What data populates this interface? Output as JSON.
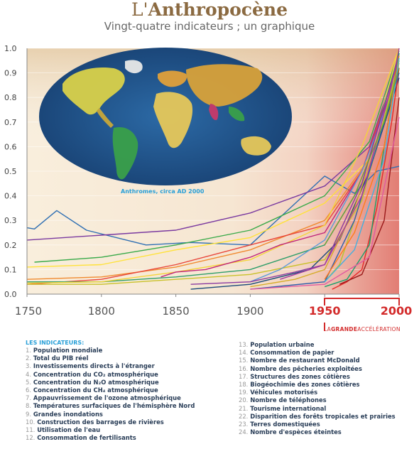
{
  "header": {
    "title_prefix": "L'",
    "title_main": "Anthropocène",
    "subtitle": "Vingt-quatre indicateurs ; un graphique"
  },
  "map": {
    "caption": "Anthromes, circa AD 2000"
  },
  "annotation": {
    "label_part1": "LA",
    "label_part2": "GRANDE",
    "label_part3": "ACCÉLÉRATION",
    "range": [
      1950,
      2000
    ]
  },
  "colors": {
    "background_left": "#f7e9d4",
    "background_right": "#e89088",
    "highlight": "#d32b2b",
    "legend_title": "#2aa0d8"
  },
  "legend": {
    "title": "LES INDICATEURS:",
    "items": [
      {
        "num": "1.",
        "label": "Population mondiale"
      },
      {
        "num": "2.",
        "label": "Total du PIB réel"
      },
      {
        "num": "3.",
        "label": "Investissements directs à l'étranger"
      },
      {
        "num": "4.",
        "label": "Concentration du CO₂ atmosphérique"
      },
      {
        "num": "5.",
        "label": "Concentration du N₂O atmosphérique"
      },
      {
        "num": "6.",
        "label": "Concentration du CH₄ atmosphérique"
      },
      {
        "num": "7.",
        "label": "Appauvrissement de l'ozone atmosphérique"
      },
      {
        "num": "8.",
        "label": "Températures surfaciques de l'hémisphère Nord"
      },
      {
        "num": "9.",
        "label": "Grandes inondations"
      },
      {
        "num": "10.",
        "label": "Construction des barrages de rivières"
      },
      {
        "num": "11.",
        "label": "Utilisation de l'eau"
      },
      {
        "num": "12.",
        "label": "Consommation de fertilisants"
      },
      {
        "num": "13.",
        "label": "Population urbaine"
      },
      {
        "num": "14.",
        "label": "Consommation de papier"
      },
      {
        "num": "15.",
        "label": "Nombre de restaurant McDonald"
      },
      {
        "num": "16.",
        "label": "Nombre des pêcheries exploitées"
      },
      {
        "num": "17.",
        "label": "Structures des zones côtières"
      },
      {
        "num": "18.",
        "label": "Biogéochimie des zones côtières"
      },
      {
        "num": "19.",
        "label": "Véhicules motorisés"
      },
      {
        "num": "20.",
        "label": "Nombre de téléphones"
      },
      {
        "num": "21.",
        "label": "Tourisme international"
      },
      {
        "num": "22.",
        "label": "Disparition des forêts tropicales et prairies"
      },
      {
        "num": "23.",
        "label": "Terres domestiquées"
      },
      {
        "num": "24.",
        "label": "Nombre d'espèces éteintes"
      }
    ]
  },
  "chart_data": {
    "type": "line",
    "title": "L'Anthropocène",
    "subtitle": "Vingt-quatre indicateurs ; un graphique",
    "xlim": [
      1750,
      2000
    ],
    "ylim": [
      0,
      1.0
    ],
    "x_ticks": [
      1750,
      1800,
      1850,
      1900,
      1950,
      2000
    ],
    "y_ticks": [
      "0.0",
      "0.1",
      "0.2",
      "0.3",
      "0.4",
      "0.5",
      "0.6",
      "0.7",
      "0.8",
      "0.9",
      "1.0"
    ],
    "series": [
      {
        "color": "#2f6fb3",
        "points": [
          [
            1750,
            0.27
          ],
          [
            1755,
            0.265
          ],
          [
            1770,
            0.34
          ],
          [
            1790,
            0.26
          ],
          [
            1830,
            0.2
          ],
          [
            1860,
            0.21
          ],
          [
            1900,
            0.2
          ],
          [
            1950,
            0.48
          ],
          [
            1970,
            0.41
          ],
          [
            1985,
            0.5
          ],
          [
            2000,
            0.52
          ]
        ]
      },
      {
        "color": "#7a3aa0",
        "points": [
          [
            1750,
            0.22
          ],
          [
            1800,
            0.24
          ],
          [
            1850,
            0.26
          ],
          [
            1900,
            0.33
          ],
          [
            1950,
            0.44
          ],
          [
            1980,
            0.6
          ],
          [
            2000,
            0.96
          ]
        ]
      },
      {
        "color": "#3aaa4a",
        "points": [
          [
            1755,
            0.13
          ],
          [
            1800,
            0.15
          ],
          [
            1850,
            0.2
          ],
          [
            1900,
            0.26
          ],
          [
            1950,
            0.4
          ],
          [
            1980,
            0.62
          ],
          [
            2000,
            0.99
          ]
        ]
      },
      {
        "color": "#ffe23a",
        "points": [
          [
            1750,
            0.11
          ],
          [
            1800,
            0.12
          ],
          [
            1850,
            0.18
          ],
          [
            1900,
            0.23
          ],
          [
            1950,
            0.37
          ],
          [
            1980,
            0.55
          ],
          [
            2000,
            1.0
          ]
        ]
      },
      {
        "color": "#f08a30",
        "points": [
          [
            1750,
            0.06
          ],
          [
            1800,
            0.07
          ],
          [
            1850,
            0.11
          ],
          [
            1900,
            0.18
          ],
          [
            1950,
            0.3
          ],
          [
            1980,
            0.55
          ],
          [
            2000,
            0.98
          ]
        ]
      },
      {
        "color": "#e8453a",
        "points": [
          [
            1750,
            0.04
          ],
          [
            1800,
            0.06
          ],
          [
            1850,
            0.12
          ],
          [
            1900,
            0.2
          ],
          [
            1950,
            0.28
          ],
          [
            1975,
            0.5
          ],
          [
            2000,
            0.95
          ]
        ]
      },
      {
        "color": "#2f9e6a",
        "points": [
          [
            1750,
            0.05
          ],
          [
            1800,
            0.05
          ],
          [
            1850,
            0.07
          ],
          [
            1900,
            0.1
          ],
          [
            1950,
            0.2
          ],
          [
            1975,
            0.45
          ],
          [
            2000,
            0.98
          ]
        ]
      },
      {
        "color": "#f4d43a",
        "points": [
          [
            1750,
            0.045
          ],
          [
            1800,
            0.05
          ],
          [
            1850,
            0.09
          ],
          [
            1900,
            0.14
          ],
          [
            1950,
            0.28
          ],
          [
            1975,
            0.6
          ],
          [
            2000,
            1.0
          ]
        ]
      },
      {
        "color": "#c9c12a",
        "points": [
          [
            1750,
            0.04
          ],
          [
            1800,
            0.04
          ],
          [
            1850,
            0.06
          ],
          [
            1900,
            0.08
          ],
          [
            1950,
            0.14
          ],
          [
            1975,
            0.38
          ],
          [
            2000,
            0.94
          ]
        ]
      },
      {
        "color": "#c0257a",
        "points": [
          [
            1840,
            0.07
          ],
          [
            1850,
            0.09
          ],
          [
            1870,
            0.1
          ],
          [
            1900,
            0.15
          ],
          [
            1920,
            0.2
          ],
          [
            1950,
            0.25
          ],
          [
            1975,
            0.5
          ],
          [
            2000,
            0.92
          ]
        ]
      },
      {
        "color": "#1a4a7a",
        "points": [
          [
            1860,
            0.02
          ],
          [
            1900,
            0.04
          ],
          [
            1940,
            0.1
          ],
          [
            1960,
            0.22
          ],
          [
            1980,
            0.5
          ],
          [
            2000,
            0.88
          ]
        ]
      },
      {
        "color": "#5a9ad8",
        "points": [
          [
            1900,
            0.05
          ],
          [
            1920,
            0.1
          ],
          [
            1950,
            0.22
          ],
          [
            1975,
            0.5
          ],
          [
            2000,
            0.9
          ]
        ]
      },
      {
        "color": "#8a3aa0",
        "points": [
          [
            1860,
            0.04
          ],
          [
            1900,
            0.05
          ],
          [
            1930,
            0.09
          ],
          [
            1950,
            0.12
          ],
          [
            1975,
            0.45
          ],
          [
            2000,
            0.97
          ]
        ]
      },
      {
        "color": "#d5ac2a",
        "points": [
          [
            1900,
            0.03
          ],
          [
            1930,
            0.06
          ],
          [
            1950,
            0.1
          ],
          [
            1970,
            0.35
          ],
          [
            1990,
            0.7
          ],
          [
            2000,
            0.95
          ]
        ]
      },
      {
        "color": "#e42a2a",
        "points": [
          [
            1955,
            0.02
          ],
          [
            1965,
            0.05
          ],
          [
            1975,
            0.1
          ],
          [
            1985,
            0.35
          ],
          [
            1995,
            0.7
          ],
          [
            2000,
            0.92
          ]
        ]
      },
      {
        "color": "#b3c62a",
        "points": [
          [
            1950,
            0.05
          ],
          [
            1960,
            0.12
          ],
          [
            1970,
            0.3
          ],
          [
            1985,
            0.6
          ],
          [
            2000,
            0.95
          ]
        ]
      },
      {
        "color": "#1aa06a",
        "points": [
          [
            1950,
            0.03
          ],
          [
            1965,
            0.06
          ],
          [
            1980,
            0.2
          ],
          [
            1990,
            0.6
          ],
          [
            2000,
            0.98
          ]
        ]
      },
      {
        "color": "#2f5faa",
        "points": [
          [
            1900,
            0.02
          ],
          [
            1950,
            0.05
          ],
          [
            1970,
            0.3
          ],
          [
            1990,
            0.7
          ],
          [
            2000,
            0.9
          ]
        ]
      },
      {
        "color": "#ff7a1a",
        "points": [
          [
            1950,
            0.06
          ],
          [
            1970,
            0.25
          ],
          [
            1990,
            0.6
          ],
          [
            2000,
            0.97
          ]
        ]
      },
      {
        "color": "#a23aa0",
        "points": [
          [
            1920,
            0.06
          ],
          [
            1950,
            0.12
          ],
          [
            1975,
            0.4
          ],
          [
            1995,
            0.85
          ],
          [
            2000,
            1.0
          ]
        ]
      },
      {
        "color": "#41b0e0",
        "points": [
          [
            1950,
            0.05
          ],
          [
            1970,
            0.18
          ],
          [
            1990,
            0.55
          ],
          [
            2000,
            0.96
          ]
        ]
      },
      {
        "color": "#9a1a1a",
        "points": [
          [
            1960,
            0.04
          ],
          [
            1975,
            0.08
          ],
          [
            1990,
            0.3
          ],
          [
            2000,
            0.8
          ]
        ]
      },
      {
        "color": "#6aa03a",
        "points": [
          [
            1950,
            0.2
          ],
          [
            1970,
            0.4
          ],
          [
            1990,
            0.7
          ],
          [
            2000,
            0.92
          ]
        ]
      },
      {
        "color": "#e05aa0",
        "points": [
          [
            1900,
            0.02
          ],
          [
            1950,
            0.04
          ],
          [
            1980,
            0.15
          ],
          [
            2000,
            0.72
          ]
        ]
      }
    ]
  }
}
